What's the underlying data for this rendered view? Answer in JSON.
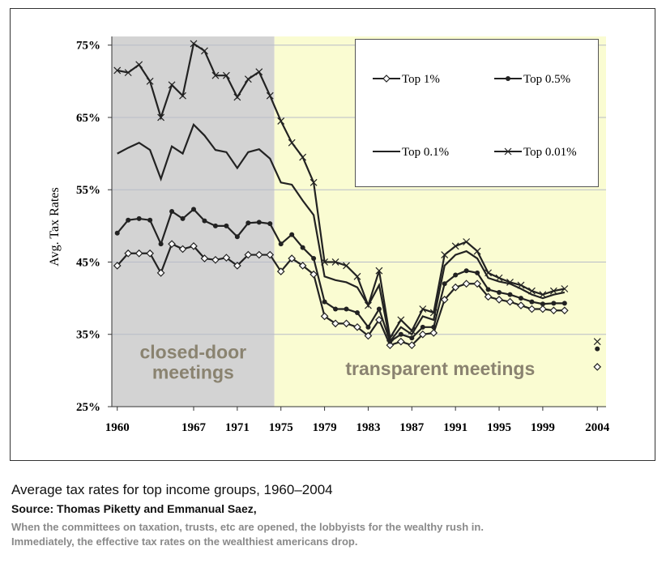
{
  "chart_data": {
    "type": "line",
    "ylabel": "Avg. Tax Rates",
    "x": [
      1960,
      1961,
      1962,
      1963,
      1964,
      1965,
      1966,
      1967,
      1968,
      1969,
      1970,
      1971,
      1972,
      1973,
      1974,
      1975,
      1976,
      1977,
      1978,
      1979,
      1980,
      1981,
      1982,
      1983,
      1984,
      1985,
      1986,
      1987,
      1988,
      1989,
      1990,
      1991,
      1992,
      1993,
      1994,
      1995,
      1996,
      1997,
      1998,
      1999,
      2000,
      2001,
      2002,
      2004
    ],
    "series": [
      {
        "name": "Top 1%",
        "color": "#222222",
        "marker": "diamond",
        "values": [
          44.5,
          46.2,
          46.2,
          46.2,
          43.5,
          47.5,
          46.8,
          47.2,
          45.5,
          45.3,
          45.6,
          44.5,
          46,
          46,
          46,
          43.7,
          45.5,
          44.5,
          43.3,
          37.5,
          36.5,
          36.5,
          36,
          34.8,
          37,
          33.5,
          34,
          33.5,
          35,
          35.2,
          39.8,
          41.5,
          42,
          42,
          40.2,
          39.8,
          39.5,
          39,
          38.5,
          38.5,
          38.3,
          38.3,
          null,
          30.5
        ]
      },
      {
        "name": "Top 0.5%",
        "color": "#222222",
        "marker": "dot",
        "values": [
          49,
          50.8,
          51,
          50.8,
          47.5,
          52,
          51,
          52.3,
          50.7,
          50,
          50,
          48.5,
          50.4,
          50.5,
          50.3,
          47.5,
          48.8,
          47,
          45.5,
          39.5,
          38.5,
          38.5,
          38,
          36,
          38.5,
          34,
          35,
          34.5,
          36,
          36,
          42,
          43.2,
          43.8,
          43.5,
          41.2,
          40.8,
          40.5,
          40,
          39.5,
          39.2,
          39.3,
          39.3,
          null,
          33
        ]
      },
      {
        "name": "Top 0.1%",
        "color": "#222222",
        "marker": "none",
        "values": [
          60,
          60.8,
          61.5,
          60.5,
          56.5,
          61,
          60,
          64,
          62.5,
          60.5,
          60.2,
          58,
          60.2,
          60.6,
          59.3,
          56,
          55.7,
          53.5,
          51.5,
          43,
          42.5,
          42.2,
          41.5,
          39,
          41.8,
          34,
          36,
          35,
          37.5,
          37,
          44.5,
          46,
          46.5,
          45.5,
          42.8,
          42.3,
          42,
          41.3,
          40.5,
          40,
          40.5,
          40.8,
          null,
          33.5
        ]
      },
      {
        "name": "Top 0.01%",
        "color": "#222222",
        "marker": "cross",
        "values": [
          71.5,
          71.2,
          72.3,
          70,
          65,
          69.5,
          68,
          75.2,
          74.2,
          70.8,
          70.8,
          67.8,
          70.3,
          71.3,
          68,
          64.5,
          61.5,
          59.5,
          56,
          45,
          45,
          44.5,
          43,
          39,
          43.8,
          34.5,
          37,
          35.5,
          38.5,
          38,
          46,
          47.2,
          47.8,
          46.5,
          43.5,
          42.8,
          42.2,
          41.8,
          41,
          40.5,
          41,
          41.3,
          null,
          34
        ]
      }
    ],
    "xlim": [
      1959.5,
      2004.8
    ],
    "xticks": [
      1960,
      1967,
      1971,
      1975,
      1979,
      1983,
      1987,
      1991,
      1995,
      1999,
      2004
    ],
    "ylim": [
      25,
      76.2
    ],
    "yticks": [
      {
        "value": 25,
        "label": "25%"
      },
      {
        "value": 35,
        "label": "35%"
      },
      {
        "value": 45,
        "label": "45%"
      },
      {
        "value": 55,
        "label": "55%"
      },
      {
        "value": 65,
        "label": "65%"
      },
      {
        "value": 75,
        "label": "75%"
      }
    ],
    "grid": true,
    "regions": [
      {
        "label": [
          "closed-door",
          "meetings"
        ],
        "start": 1959.5,
        "end": 1974.4,
        "color": "#d3d3d3"
      },
      {
        "label": [
          "transparent meetings"
        ],
        "start": 1974.4,
        "end": 2004.8,
        "color": "#fafcd2"
      }
    ],
    "caption": "Average tax rates for top income groups, 1960–2004",
    "source": "Source: Thomas Piketty and Emmanual Saez,",
    "note": [
      "When the committees on taxation, trusts, etc are opened, the lobbyists for the wealthy rush in.",
      "Immediately, the effective tax rates on the wealthiest americans drop."
    ]
  }
}
